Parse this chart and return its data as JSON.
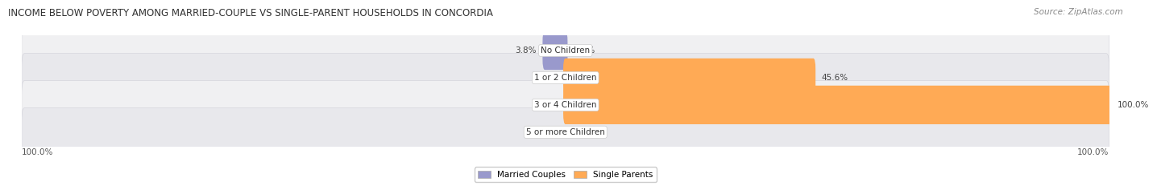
{
  "title": "INCOME BELOW POVERTY AMONG MARRIED-COUPLE VS SINGLE-PARENT HOUSEHOLDS IN CONCORDIA",
  "source": "Source: ZipAtlas.com",
  "categories": [
    "No Children",
    "1 or 2 Children",
    "3 or 4 Children",
    "5 or more Children"
  ],
  "married_values": [
    3.8,
    0.0,
    0.0,
    0.0
  ],
  "single_values": [
    0.0,
    45.6,
    100.0,
    0.0
  ],
  "married_color": "#9999cc",
  "single_color": "#ffaa55",
  "title_fontsize": 8.5,
  "source_fontsize": 7.5,
  "label_fontsize": 7.5,
  "category_fontsize": 7.5,
  "legend_fontsize": 7.5,
  "background_color": "#ffffff",
  "bar_height": 0.62,
  "xlim_left": -100,
  "xlim_right": 100,
  "row_bg_even": "#f0f0f2",
  "row_bg_odd": "#e8e8ec",
  "row_edge_color": "#d0d0d8"
}
